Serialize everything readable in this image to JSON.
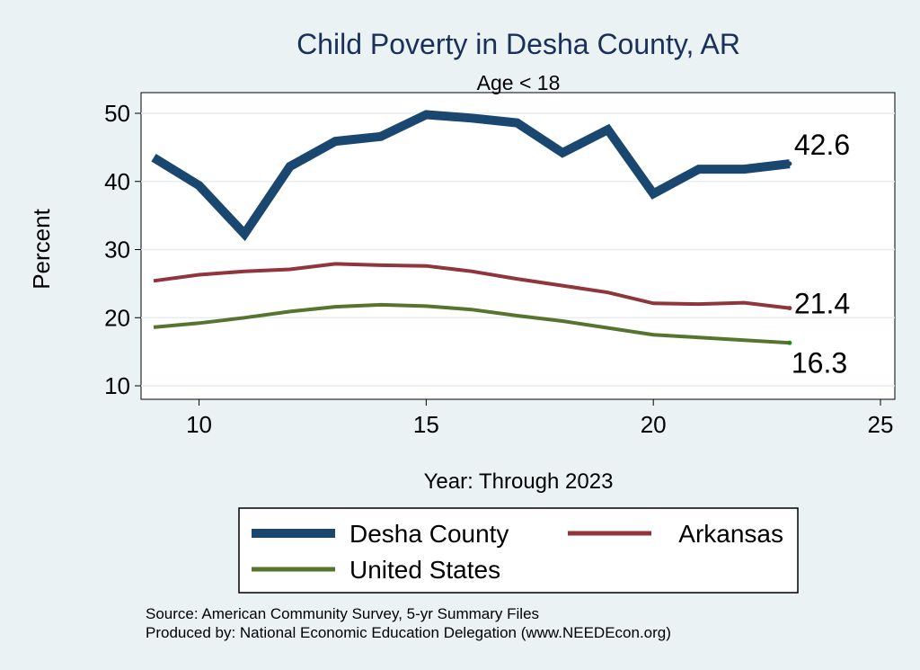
{
  "chart_data": {
    "type": "line",
    "title": "Child Poverty in Desha County, AR",
    "subtitle": "Age < 18",
    "xlabel": "Year: Through 2023",
    "ylabel": "Percent",
    "xlim": [
      9,
      25
    ],
    "ylim": [
      10,
      50
    ],
    "xticks": [
      10,
      15,
      20,
      25
    ],
    "yticks": [
      10,
      20,
      30,
      40,
      50
    ],
    "grid": true,
    "legend_position": "bottom",
    "x": [
      9,
      10,
      11,
      12,
      13,
      14,
      15,
      16,
      17,
      18,
      19,
      20,
      21,
      22,
      23
    ],
    "series": [
      {
        "name": "Desha County",
        "color": "#1a476f",
        "values": [
          43.5,
          39.4,
          32.3,
          42.2,
          45.9,
          46.6,
          49.8,
          49.3,
          48.6,
          44.2,
          47.6,
          38.2,
          41.8,
          41.8,
          42.6
        ],
        "end_label": "42.6"
      },
      {
        "name": "Arkansas",
        "color": "#90353b",
        "values": [
          25.4,
          26.3,
          26.8,
          27.1,
          27.9,
          27.7,
          27.6,
          26.8,
          25.7,
          24.7,
          23.7,
          22.1,
          22.0,
          22.2,
          21.4
        ],
        "end_label": "21.4"
      },
      {
        "name": "United States",
        "color": "#55752f",
        "values": [
          18.6,
          19.2,
          20.0,
          20.9,
          21.6,
          21.9,
          21.7,
          21.2,
          20.3,
          19.5,
          18.5,
          17.5,
          17.1,
          16.7,
          16.3
        ],
        "end_label": "16.3"
      }
    ]
  },
  "notes": {
    "source": "Source: American Community Survey, 5-yr Summary Files",
    "produced_by": "Produced by: National Economic Education Delegation (www.NEEDEcon.org)"
  }
}
